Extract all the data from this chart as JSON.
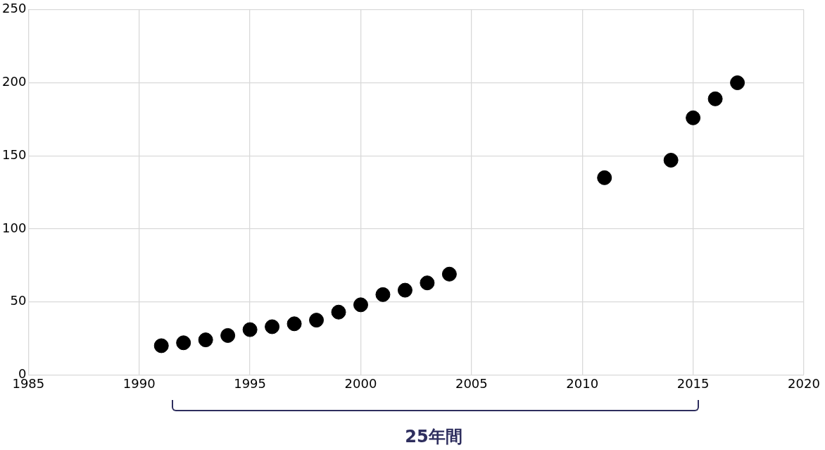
{
  "chart_data": {
    "type": "scatter",
    "x": [
      1991,
      1992,
      1993,
      1994,
      1995,
      1996,
      1997,
      1998,
      1999,
      2000,
      2001,
      2002,
      2003,
      2004,
      2011,
      2014,
      2015,
      2016,
      2017
    ],
    "series": [
      {
        "color": "#000000",
        "values": [
          20,
          22,
          24,
          27,
          31,
          33,
          35,
          37.5,
          43,
          48,
          55,
          58,
          63,
          69,
          135,
          147,
          176,
          189,
          200
        ]
      }
    ],
    "xlim": [
      1985,
      2020
    ],
    "xticks": [
      1985,
      1990,
      1995,
      2000,
      2005,
      2010,
      2015,
      2020
    ],
    "ylim": [
      0,
      250
    ],
    "yticks": [
      0,
      50,
      100,
      150,
      200,
      250
    ],
    "grid": true,
    "legend": false,
    "marker": "circle",
    "annotations": [
      "25年間"
    ]
  }
}
